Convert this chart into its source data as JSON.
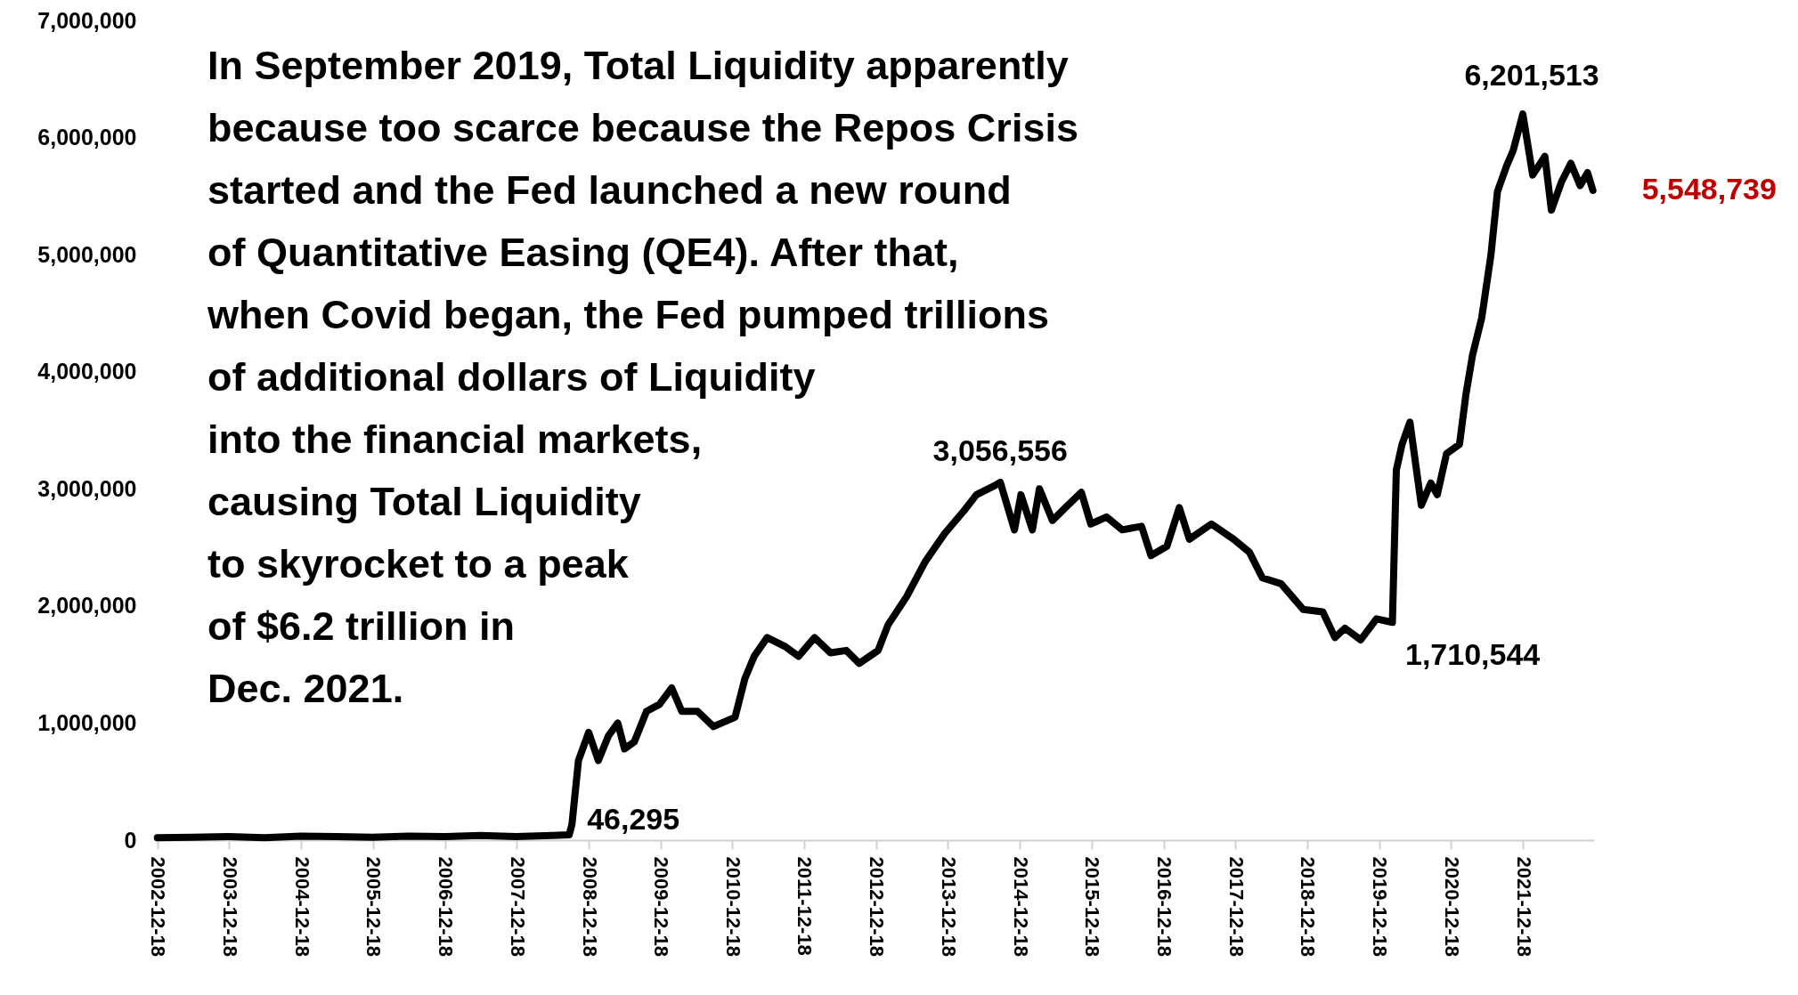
{
  "chart_data": {
    "type": "line",
    "annotations": [
      "In September 2019, Total Liquidity apparently\nbecause too scarce because the Repos Crisis\nstarted and the Fed launched a new round\nof Quantitative Easing (QE4). After that,\nwhen Covid began, the Fed pumped trillions\nof additional dollars of Liquidity\ninto the financial markets,\ncausing Total Liquidity\nto skyrocket to a peak\nof $6.2 trillion in\nDec. 2021.",
      {
        "text": "46,295",
        "x": "2008-09-10",
        "y": 46295
      },
      {
        "text": "3,056,556",
        "x": "2014-09-10",
        "y": 3056556
      },
      {
        "text": "1,710,544",
        "x": "2019-09-16",
        "y": 1710544
      },
      {
        "text": "6,201,513",
        "x": "2021-12-18",
        "y": 6201513
      },
      {
        "text": "5,548,739",
        "x": "2022-12-09",
        "y": 5548739
      }
    ],
    "x": [
      "2002-12-18",
      "2003-06-15",
      "2003-12-15",
      "2004-06-15",
      "2004-12-15",
      "2005-06-15",
      "2005-12-15",
      "2006-06-15",
      "2006-12-15",
      "2007-06-15",
      "2007-12-15",
      "2008-06-15",
      "2008-09-10",
      "2008-09-24",
      "2008-10-27",
      "2008-12-18",
      "2009-02-05",
      "2009-03-28",
      "2009-05-15",
      "2009-06-18",
      "2009-08-07",
      "2009-10-08",
      "2009-12-13",
      "2010-02-13",
      "2010-04-05",
      "2010-06-25",
      "2010-09-13",
      "2011-01-01",
      "2011-02-20",
      "2011-04-08",
      "2011-06-13",
      "2011-09-16",
      "2011-11-20",
      "2012-02-09",
      "2012-04-30",
      "2012-07-19",
      "2012-09-23",
      "2012-12-28",
      "2013-02-17",
      "2013-05-22",
      "2013-08-25",
      "2013-12-02",
      "2014-03-08",
      "2014-05-12",
      "2014-08-15",
      "2014-09-10",
      "2014-11-21",
      "2014-12-24",
      "2015-02-20",
      "2015-03-28",
      "2015-06-02",
      "2015-08-07",
      "2015-10-27",
      "2015-12-14",
      "2016-03-03",
      "2016-05-22",
      "2016-08-28",
      "2016-10-15",
      "2017-01-04",
      "2017-03-08",
      "2017-04-28",
      "2017-08-18",
      "2017-12-09",
      "2018-02-27",
      "2018-05-04",
      "2018-08-07",
      "2018-11-28",
      "2019-03-07",
      "2019-05-08",
      "2019-06-28",
      "2019-09-16",
      "2019-12-05",
      "2020-02-24",
      "2020-03-15",
      "2020-04-13",
      "2020-05-23",
      "2020-07-20",
      "2020-09-06",
      "2020-10-09",
      "2020-11-25",
      "2021-01-30",
      "2021-03-04",
      "2021-04-06",
      "2021-05-23",
      "2021-07-09",
      "2021-08-11",
      "2021-09-27",
      "2021-10-30",
      "2021-12-18",
      "2022-02-06",
      "2022-04-09",
      "2022-05-12",
      "2022-07-02",
      "2022-08-19",
      "2022-10-05",
      "2022-11-12",
      "2022-12-09"
    ],
    "series": [
      {
        "color": "#000000",
        "values": [
          20000,
          25000,
          30000,
          20000,
          35000,
          30000,
          25000,
          35000,
          30000,
          40000,
          30000,
          40000,
          46295,
          135000,
          680000,
          920000,
          680000,
          890000,
          1000000,
          780000,
          840000,
          1100000,
          1160000,
          1300000,
          1100000,
          1100000,
          970000,
          1050000,
          1380000,
          1570000,
          1730000,
          1650000,
          1570000,
          1730000,
          1600000,
          1620000,
          1510000,
          1620000,
          1840000,
          2080000,
          2380000,
          2620000,
          2810000,
          2950000,
          3030000,
          3056556,
          2650000,
          2950000,
          2650000,
          3000000,
          2730000,
          2840000,
          2970000,
          2700000,
          2760000,
          2650000,
          2680000,
          2430000,
          2510000,
          2840000,
          2570000,
          2700000,
          2570000,
          2460000,
          2240000,
          2190000,
          1970000,
          1950000,
          1730000,
          1810000,
          1710544,
          1890000,
          1860000,
          3160000,
          3380000,
          3570000,
          2860000,
          3050000,
          2950000,
          3300000,
          3380000,
          3810000,
          4140000,
          4460000,
          5000000,
          5540000,
          5760000,
          5890000,
          6201513,
          5680000,
          5840000,
          5380000,
          5620000,
          5780000,
          5590000,
          5700000,
          5548739
        ]
      }
    ],
    "xlim": [
      "2002-12-10",
      "2022-12-15"
    ],
    "xticks": [
      "2002-12-18",
      "2003-12-18",
      "2004-12-18",
      "2005-12-18",
      "2006-12-18",
      "2007-12-18",
      "2008-12-18",
      "2009-12-18",
      "2010-12-18",
      "2011-12-18",
      "2012-12-18",
      "2013-12-18",
      "2014-12-18",
      "2015-12-18",
      "2016-12-18",
      "2017-12-18",
      "2018-12-18",
      "2019-12-18",
      "2020-12-18",
      "2021-12-18"
    ],
    "ylim": [
      0,
      7000000
    ],
    "yticks": [
      0,
      {
        "value": 1000000,
        "label": "1,000,000"
      },
      {
        "value": 2000000,
        "label": "2,000,000"
      },
      {
        "value": 3000000,
        "label": "3,000,000"
      },
      {
        "value": 4000000,
        "label": "4,000,000"
      },
      {
        "value": 5000000,
        "label": "5,000,000"
      },
      {
        "value": 6000000,
        "label": "6,000,000"
      },
      {
        "value": 7000000,
        "label": "7,000,000"
      }
    ],
    "grid": false
  }
}
